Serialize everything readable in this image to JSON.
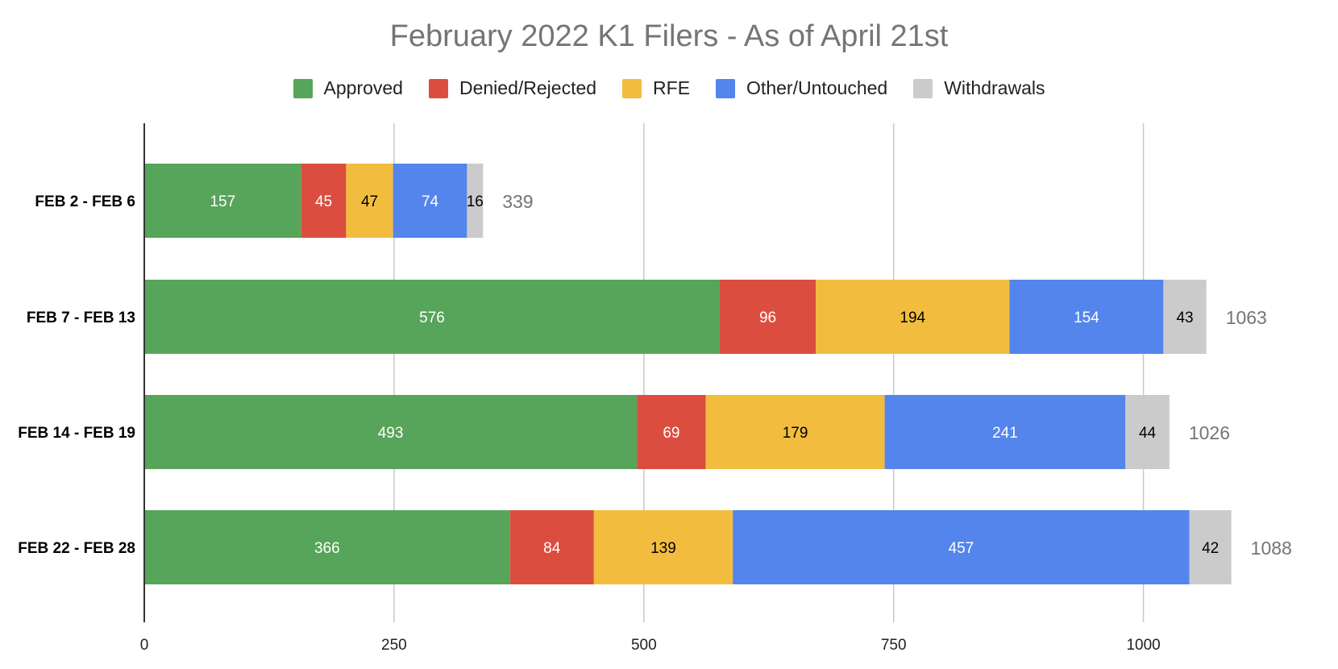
{
  "chart_data": {
    "type": "bar",
    "orientation": "horizontal",
    "stacked": true,
    "title": "February 2022 K1 Filers - As of April 21st",
    "xlabel": "",
    "ylabel": "",
    "xlim": [
      0,
      1100
    ],
    "x_ticks": [
      0,
      250,
      500,
      750,
      1000
    ],
    "grid": true,
    "legend_position": "top",
    "categories": [
      "FEB 2 - FEB 6",
      "FEB 7 - FEB 13",
      "FEB 14 - FEB 19",
      "FEB 22 - FEB 28"
    ],
    "series": [
      {
        "name": "Approved",
        "color": "#57a55a",
        "label_color": "#ffffff",
        "values": [
          157,
          576,
          493,
          366
        ]
      },
      {
        "name": "Denied/Rejected",
        "color": "#db4e3f",
        "label_color": "#ffffff",
        "values": [
          45,
          96,
          69,
          84
        ]
      },
      {
        "name": "RFE",
        "color": "#f2bd3f",
        "label_color": "#000000",
        "values": [
          47,
          194,
          179,
          139
        ]
      },
      {
        "name": "Other/Untouched",
        "color": "#5385ec",
        "label_color": "#ffffff",
        "values": [
          74,
          154,
          241,
          457
        ]
      },
      {
        "name": "Withdrawals",
        "color": "#cbcbcb",
        "label_color": "#000000",
        "values": [
          16,
          43,
          44,
          42
        ]
      }
    ],
    "totals": [
      339,
      1063,
      1026,
      1088
    ]
  }
}
